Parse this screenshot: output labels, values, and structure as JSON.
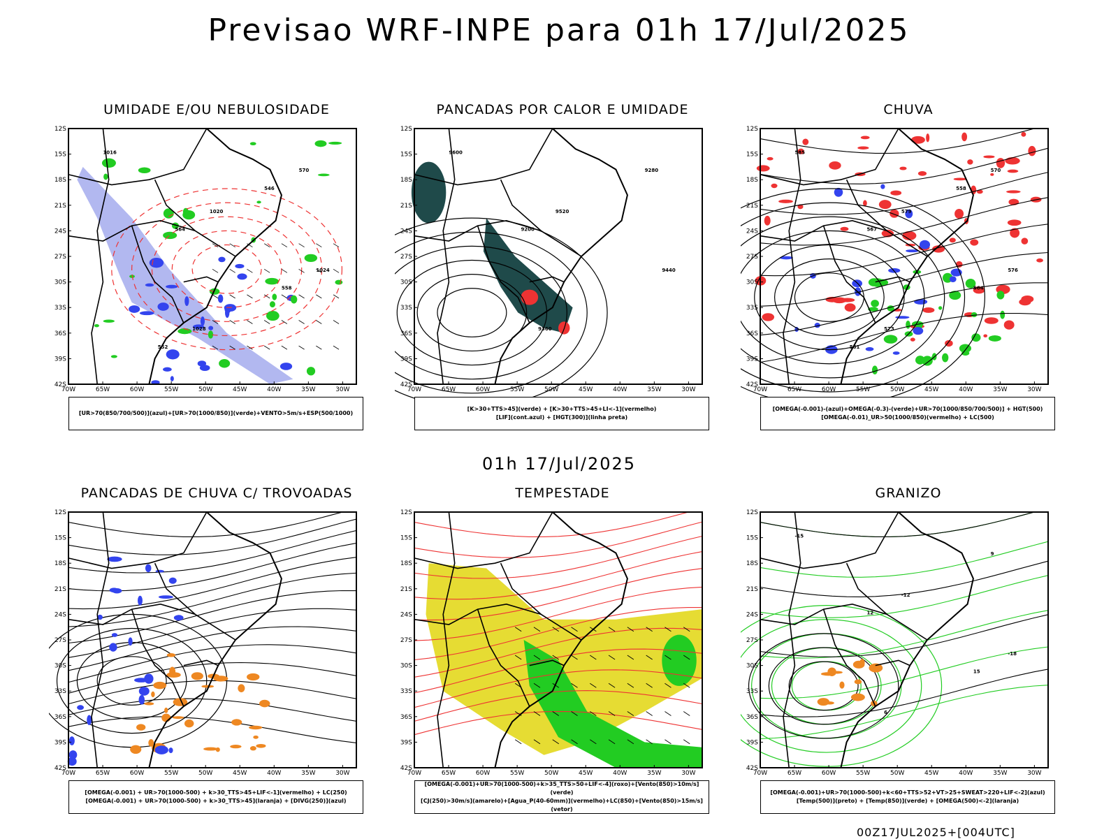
{
  "header": {
    "title": "Previsao WRF-INPE  para 01h 17/Jul/2025"
  },
  "mid_title": "01h 17/Jul/2025",
  "footer": "00Z17JUL2025+[004UTC]",
  "axes": {
    "lat_labels": [
      "12S",
      "15S",
      "18S",
      "21S",
      "24S",
      "27S",
      "30S",
      "33S",
      "36S",
      "39S",
      "42S"
    ],
    "lon_labels": [
      "70W",
      "65W",
      "60W",
      "55W",
      "50W",
      "45W",
      "40W",
      "35W",
      "30W"
    ]
  },
  "colors": {
    "blue": "#3344ee",
    "green": "#22cc22",
    "red": "#ee3333",
    "orange": "#ee8822",
    "yellow": "#e6dc33",
    "teal": "#1f4a4a",
    "lavender": "#aab0ee"
  },
  "panels": [
    {
      "title": "UMIDADE E/OU NEBULOSIDADE",
      "legend": [
        "[UR>70(850/700/500)](azul)+[UR>70(1000/850)](verde)+VENTO>5m/s+ESP(500/1000)"
      ],
      "contour_labels": [
        "1016",
        "1020",
        "1024",
        "1028",
        "570",
        "564",
        "558",
        "552",
        "546"
      ]
    },
    {
      "title": "PANCADAS POR CALOR E UMIDADE",
      "legend": [
        "[K>30+TTS>45](verde) + [K>30+TTS>45+LI<-1](vermelho)",
        "[LIF](cont.azul) + [HGT(300)](linha preta)"
      ],
      "contour_labels": [
        "9600",
        "9520",
        "9440",
        "9360",
        "9280",
        "9200"
      ]
    },
    {
      "title": "CHUVA",
      "legend": [
        "[OMEGA(-0.001)-(azul)+OMEGA(-0.3)-(verde)+UR>70(1000/850/700/500)] + HGT(500)",
        "[OMEGA(-0.01)_UR>50(1000/850)(vermelho) + LC(500)"
      ],
      "contour_labels": [
        "585",
        "579",
        "576",
        "573",
        "570",
        "567",
        "564",
        "561",
        "558"
      ]
    },
    {
      "title": "PANCADAS DE CHUVA C/ TROVOADAS",
      "legend": [
        "[OMEGA(-0.001) + UR>70(1000-500) + k>30_TTS>45+LIF<-1](vermelho) + LC(250)",
        "[OMEGA(-0.001) + UR>70(1000-500) + k>30_TTS>45](laranja) + [DIVG(250)](azul)"
      ],
      "contour_labels": []
    },
    {
      "title": "TEMPESTADE",
      "legend": [
        "[OMEGA(-0.001)+UR>70(1000-500)+k>35_TTS>50+LIF<-4](roxo)+[Vento(850)>10m/s](verde)",
        "[CJ(250)>30m/s](amarelo)+[Agua_P(40-60mm)](vermelho)+LC(850)+[Vento(850)>15m/s](vetor)"
      ],
      "contour_labels": []
    },
    {
      "title": "GRANIZO",
      "legend": [
        "[OMEGA(-0.001)+UR>70(1000-500)+k<60+TTS>52+VT>25+SWEAT>220+LIF<-2](azul)",
        "[Temp(500)](preto) + [Temp(850)](verde) + [OMEGA(500)<-2](laranja)"
      ],
      "contour_labels": [
        "-15",
        "-12",
        "-18",
        "6",
        "9",
        "12",
        "15"
      ]
    }
  ]
}
